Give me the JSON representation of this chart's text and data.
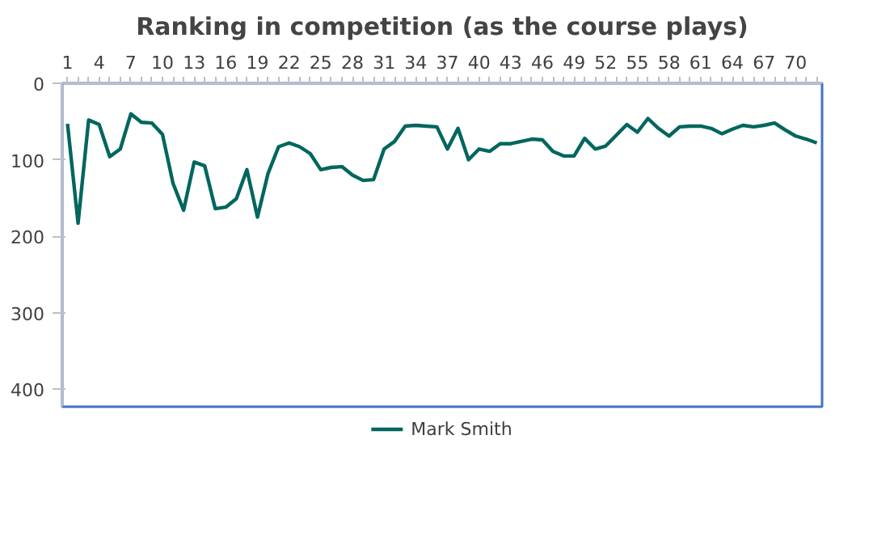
{
  "chart_data": {
    "type": "line",
    "title": "Ranking in competition (as the course plays)",
    "categories": [
      "1",
      null,
      null,
      "4",
      null,
      null,
      "7",
      null,
      null,
      "10",
      null,
      null,
      "13",
      null,
      null,
      "16",
      null,
      null,
      "19",
      null,
      null,
      "22",
      null,
      null,
      "25",
      null,
      null,
      "28",
      null,
      null,
      "31",
      null,
      null,
      "34",
      null,
      null,
      "37",
      null,
      null,
      "40",
      null,
      null,
      "43",
      null,
      null,
      "46",
      null,
      null,
      "49",
      null,
      null,
      "52",
      null,
      null,
      "55",
      null,
      null,
      "58",
      null,
      null,
      "61",
      null,
      null,
      "64",
      null,
      null,
      "67",
      null,
      null,
      "70",
      null,
      null
    ],
    "series": [
      {
        "name": "Mark Smith",
        "color": "#00665e",
        "values": [
          53,
          183,
          48,
          54,
          96,
          86,
          40,
          51,
          52,
          67,
          131,
          166,
          103,
          108,
          164,
          162,
          151,
          113,
          175,
          118,
          83,
          78,
          83,
          92,
          113,
          110,
          109,
          120,
          127,
          126,
          86,
          76,
          56,
          55,
          56,
          57,
          86,
          59,
          100,
          86,
          89,
          79,
          79,
          76,
          73,
          74,
          89,
          95,
          95,
          72,
          86,
          82,
          68,
          54,
          64,
          46,
          59,
          69,
          57,
          56,
          56,
          59,
          66,
          60,
          55,
          57,
          55,
          52,
          61,
          69,
          73,
          78
        ]
      }
    ],
    "ylim": [
      423,
      0
    ],
    "yticks": [
      0,
      100,
      200,
      300,
      400
    ],
    "legend": "bottom",
    "marker": "none",
    "line_style": "solid"
  }
}
